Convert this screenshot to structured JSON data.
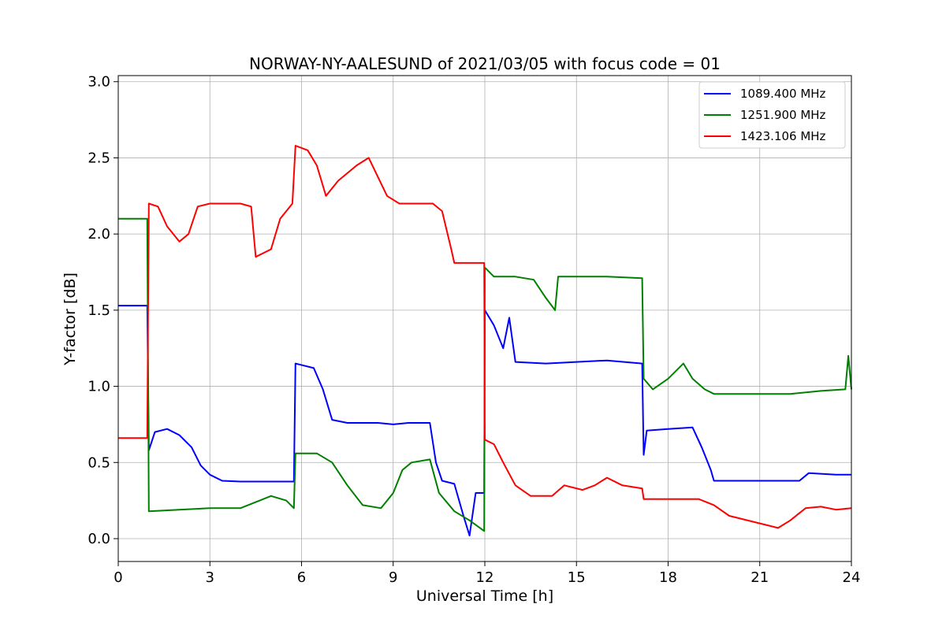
{
  "chart_data": {
    "type": "line",
    "title": "NORWAY-NY-AALESUND of 2021/03/05 with focus code = 01",
    "xlabel": "Universal Time [h]",
    "ylabel": "Y-factor [dB]",
    "xlim": [
      0,
      24
    ],
    "ylim": [
      -0.15,
      3.04
    ],
    "xticks": [
      0,
      3,
      6,
      9,
      12,
      15,
      18,
      21,
      24
    ],
    "yticks": [
      0.0,
      0.5,
      1.0,
      1.5,
      2.0,
      2.5,
      3.0
    ],
    "xtick_labels": [
      "0",
      "3",
      "6",
      "9",
      "12",
      "15",
      "18",
      "21",
      "24"
    ],
    "ytick_labels": [
      "0.0",
      "0.5",
      "1.0",
      "1.5",
      "2.0",
      "2.5",
      "3.0"
    ],
    "grid": true,
    "legend_position": "top-right",
    "series": [
      {
        "name": "1089.400 MHz",
        "color": "#0000ff",
        "points": [
          [
            0,
            1.53
          ],
          [
            0.95,
            1.53
          ],
          [
            1.0,
            0.58
          ],
          [
            1.2,
            0.7
          ],
          [
            1.6,
            0.72
          ],
          [
            2.0,
            0.68
          ],
          [
            2.4,
            0.6
          ],
          [
            2.7,
            0.48
          ],
          [
            3.0,
            0.42
          ],
          [
            3.4,
            0.38
          ],
          [
            4.0,
            0.375
          ],
          [
            5.0,
            0.375
          ],
          [
            5.75,
            0.375
          ],
          [
            5.8,
            1.15
          ],
          [
            6.4,
            1.12
          ],
          [
            6.7,
            0.98
          ],
          [
            7.0,
            0.78
          ],
          [
            7.5,
            0.76
          ],
          [
            8.5,
            0.76
          ],
          [
            9.0,
            0.75
          ],
          [
            9.5,
            0.76
          ],
          [
            10.2,
            0.76
          ],
          [
            10.4,
            0.5
          ],
          [
            10.6,
            0.38
          ],
          [
            11.0,
            0.36
          ],
          [
            11.3,
            0.15
          ],
          [
            11.5,
            0.02
          ],
          [
            11.7,
            0.3
          ],
          [
            11.98,
            0.3
          ],
          [
            12.0,
            1.5
          ],
          [
            12.3,
            1.4
          ],
          [
            12.6,
            1.25
          ],
          [
            12.8,
            1.45
          ],
          [
            13.0,
            1.16
          ],
          [
            14.0,
            1.15
          ],
          [
            16.0,
            1.17
          ],
          [
            17.15,
            1.15
          ],
          [
            17.2,
            0.55
          ],
          [
            17.3,
            0.71
          ],
          [
            18.0,
            0.72
          ],
          [
            18.8,
            0.73
          ],
          [
            19.1,
            0.6
          ],
          [
            19.4,
            0.45
          ],
          [
            19.5,
            0.38
          ],
          [
            21.0,
            0.38
          ],
          [
            22.3,
            0.38
          ],
          [
            22.6,
            0.43
          ],
          [
            23.5,
            0.42
          ],
          [
            24.0,
            0.42
          ]
        ]
      },
      {
        "name": "1251.900 MHz",
        "color": "#008000",
        "points": [
          [
            0,
            2.1
          ],
          [
            0.95,
            2.1
          ],
          [
            1.0,
            0.18
          ],
          [
            2.0,
            0.19
          ],
          [
            3.0,
            0.2
          ],
          [
            4.0,
            0.2
          ],
          [
            4.5,
            0.24
          ],
          [
            5.0,
            0.28
          ],
          [
            5.5,
            0.25
          ],
          [
            5.75,
            0.2
          ],
          [
            5.8,
            0.56
          ],
          [
            6.5,
            0.56
          ],
          [
            7.0,
            0.5
          ],
          [
            7.5,
            0.35
          ],
          [
            8.0,
            0.22
          ],
          [
            8.6,
            0.2
          ],
          [
            9.0,
            0.3
          ],
          [
            9.3,
            0.45
          ],
          [
            9.6,
            0.5
          ],
          [
            10.2,
            0.52
          ],
          [
            10.5,
            0.3
          ],
          [
            11.0,
            0.18
          ],
          [
            11.5,
            0.12
          ],
          [
            11.98,
            0.05
          ],
          [
            12.0,
            1.78
          ],
          [
            12.3,
            1.72
          ],
          [
            13.0,
            1.72
          ],
          [
            13.6,
            1.7
          ],
          [
            14.0,
            1.58
          ],
          [
            14.3,
            1.5
          ],
          [
            14.4,
            1.72
          ],
          [
            15.0,
            1.72
          ],
          [
            16.0,
            1.72
          ],
          [
            17.15,
            1.71
          ],
          [
            17.2,
            1.05
          ],
          [
            17.5,
            0.98
          ],
          [
            18.0,
            1.05
          ],
          [
            18.5,
            1.15
          ],
          [
            18.8,
            1.05
          ],
          [
            19.2,
            0.98
          ],
          [
            19.5,
            0.95
          ],
          [
            21.0,
            0.95
          ],
          [
            22.0,
            0.95
          ],
          [
            23.0,
            0.97
          ],
          [
            23.8,
            0.98
          ],
          [
            23.9,
            1.2
          ],
          [
            24.0,
            0.98
          ]
        ]
      },
      {
        "name": "1423.106 MHz",
        "color": "#ff0000",
        "points": [
          [
            0,
            0.66
          ],
          [
            0.95,
            0.66
          ],
          [
            1.0,
            2.2
          ],
          [
            1.3,
            2.18
          ],
          [
            1.6,
            2.05
          ],
          [
            2.0,
            1.95
          ],
          [
            2.3,
            2.0
          ],
          [
            2.6,
            2.18
          ],
          [
            3.0,
            2.2
          ],
          [
            4.0,
            2.2
          ],
          [
            4.35,
            2.18
          ],
          [
            4.5,
            1.85
          ],
          [
            5.0,
            1.9
          ],
          [
            5.3,
            2.1
          ],
          [
            5.7,
            2.2
          ],
          [
            5.8,
            2.58
          ],
          [
            6.2,
            2.55
          ],
          [
            6.5,
            2.45
          ],
          [
            6.8,
            2.25
          ],
          [
            7.2,
            2.35
          ],
          [
            7.8,
            2.45
          ],
          [
            8.2,
            2.5
          ],
          [
            8.8,
            2.25
          ],
          [
            9.2,
            2.2
          ],
          [
            10.0,
            2.2
          ],
          [
            10.3,
            2.2
          ],
          [
            10.6,
            2.15
          ],
          [
            10.9,
            1.9
          ],
          [
            11.0,
            1.81
          ],
          [
            11.98,
            1.81
          ],
          [
            12.0,
            0.65
          ],
          [
            12.3,
            0.62
          ],
          [
            12.6,
            0.5
          ],
          [
            13.0,
            0.35
          ],
          [
            13.5,
            0.28
          ],
          [
            14.2,
            0.28
          ],
          [
            14.6,
            0.35
          ],
          [
            15.2,
            0.32
          ],
          [
            15.6,
            0.35
          ],
          [
            16.0,
            0.4
          ],
          [
            16.5,
            0.35
          ],
          [
            17.15,
            0.33
          ],
          [
            17.2,
            0.26
          ],
          [
            18.0,
            0.26
          ],
          [
            19.0,
            0.26
          ],
          [
            19.5,
            0.22
          ],
          [
            20.0,
            0.15
          ],
          [
            21.0,
            0.1
          ],
          [
            21.6,
            0.07
          ],
          [
            22.0,
            0.12
          ],
          [
            22.5,
            0.2
          ],
          [
            23.0,
            0.21
          ],
          [
            23.5,
            0.19
          ],
          [
            24.0,
            0.2
          ]
        ]
      }
    ]
  }
}
